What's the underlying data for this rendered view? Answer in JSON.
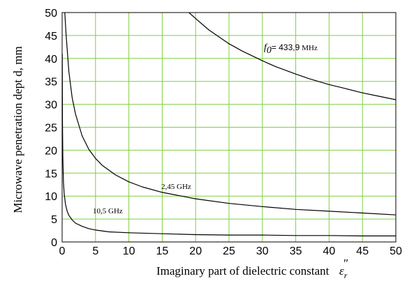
{
  "chart_data": {
    "type": "line",
    "title": "",
    "xlabel": "Imaginary part of dielectric constant",
    "xlabel_symbol": "ε",
    "xlabel_symbol_sub": "r",
    "xlabel_symbol_sup": "\"",
    "ylabel": "Microwave penetration dept d, mm",
    "xlim": [
      0,
      50
    ],
    "ylim": [
      0,
      50
    ],
    "xticks": [
      0,
      5,
      10,
      15,
      20,
      25,
      30,
      35,
      40,
      45,
      50
    ],
    "yticks": [
      0,
      5,
      10,
      15,
      20,
      25,
      30,
      35,
      40,
      45,
      50
    ],
    "grid": true,
    "grid_color": "#7fcf3f",
    "line_color": "#000000",
    "series": [
      {
        "name": "f0 = 433,9 MHz",
        "label_symbol": "f",
        "label_sub": "0",
        "label_value": "= 433,9",
        "label_unit": "MHz",
        "x": [
          19,
          20,
          22,
          25,
          27,
          30,
          32,
          35,
          37,
          40,
          42,
          45,
          47,
          50
        ],
        "y": [
          50,
          48.7,
          46.2,
          43.2,
          41.6,
          39.5,
          38.2,
          36.6,
          35.6,
          34.3,
          33.6,
          32.5,
          31.9,
          31.0
        ]
      },
      {
        "name": "2,45 GHz",
        "x": [
          0.4,
          0.6,
          1,
          1.5,
          2,
          3,
          4,
          5,
          6,
          8,
          10,
          12,
          15,
          20,
          25,
          30,
          35,
          40,
          45,
          50
        ],
        "y": [
          50,
          45.1,
          37.2,
          31.5,
          27.9,
          23.1,
          20.2,
          18.2,
          16.7,
          14.6,
          13.1,
          12.0,
          10.8,
          9.4,
          8.4,
          7.7,
          7.1,
          6.7,
          6.3,
          5.9
        ],
        "label": "2,45 GHz"
      },
      {
        "name": "10,5 GHz",
        "x": [
          0.02,
          0.05,
          0.1,
          0.2,
          0.3,
          0.5,
          0.75,
          1,
          1.5,
          2,
          3,
          4,
          5,
          7,
          10,
          15,
          20,
          25,
          30,
          35,
          40,
          45,
          50
        ],
        "y": [
          41,
          26.0,
          18.4,
          13.0,
          10.6,
          8.2,
          6.7,
          5.8,
          4.8,
          4.1,
          3.4,
          2.9,
          2.6,
          2.2,
          2.0,
          1.8,
          1.6,
          1.5,
          1.5,
          1.4,
          1.4,
          1.3,
          1.3
        ],
        "label": "10,5 GHz"
      }
    ]
  }
}
